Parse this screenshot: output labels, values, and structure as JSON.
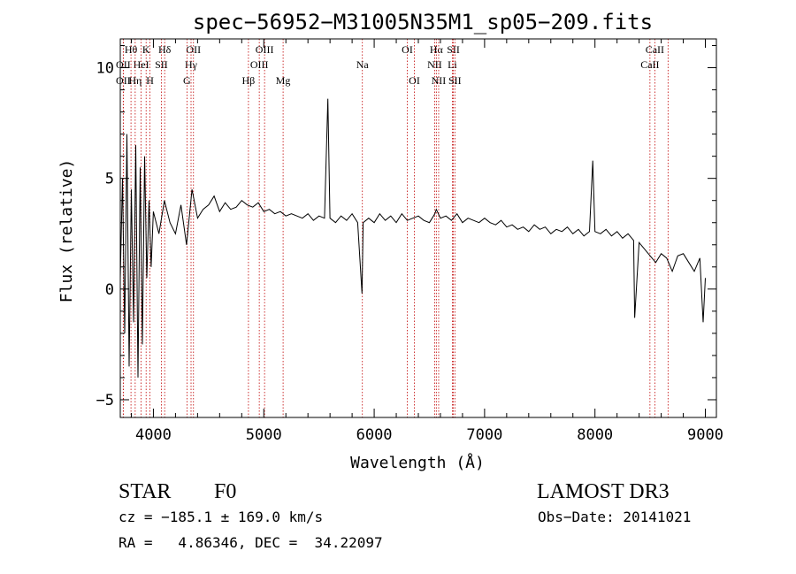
{
  "chart_data": {
    "type": "line",
    "title": "spec−56952−M31005N35M1_sp05−209.fits",
    "xlabel": "Wavelength (Å)",
    "ylabel": "Flux (relative)",
    "xlim": [
      3700,
      9100
    ],
    "ylim": [
      -5.8,
      11.3
    ],
    "xticks": [
      4000,
      5000,
      6000,
      7000,
      8000,
      9000
    ],
    "xtick_labels": [
      "4000",
      "5000",
      "6000",
      "7000",
      "8000",
      "9000"
    ],
    "yticks": [
      -5,
      0,
      5,
      10
    ],
    "ytick_labels": [
      "−5",
      "0",
      "5",
      "10"
    ],
    "grid": false,
    "legend": "none",
    "series": [
      {
        "name": "flux",
        "x": [
          3700,
          3720,
          3740,
          3760,
          3780,
          3800,
          3820,
          3840,
          3860,
          3880,
          3900,
          3920,
          3940,
          3960,
          3980,
          4000,
          4050,
          4100,
          4150,
          4200,
          4250,
          4300,
          4350,
          4400,
          4450,
          4500,
          4550,
          4600,
          4650,
          4700,
          4750,
          4800,
          4850,
          4900,
          4950,
          5000,
          5050,
          5100,
          5150,
          5200,
          5250,
          5300,
          5350,
          5400,
          5450,
          5500,
          5550,
          5580,
          5600,
          5650,
          5700,
          5750,
          5800,
          5850,
          5890,
          5900,
          5950,
          6000,
          6050,
          6100,
          6150,
          6200,
          6250,
          6300,
          6350,
          6400,
          6450,
          6500,
          6550,
          6563,
          6600,
          6650,
          6700,
          6750,
          6800,
          6850,
          6900,
          6950,
          7000,
          7050,
          7100,
          7150,
          7200,
          7250,
          7300,
          7350,
          7400,
          7450,
          7500,
          7550,
          7600,
          7650,
          7700,
          7750,
          7800,
          7850,
          7900,
          7950,
          7980,
          8000,
          8050,
          8100,
          8150,
          8200,
          8250,
          8300,
          8350,
          8360,
          8400,
          8450,
          8500,
          8550,
          8600,
          8650,
          8700,
          8750,
          8800,
          8850,
          8900,
          8950,
          8980,
          9000
        ],
        "y": [
          0.5,
          5.0,
          -2.0,
          7.0,
          -3.5,
          4.5,
          -1.5,
          6.5,
          -4.0,
          5.5,
          -2.5,
          6.0,
          0.5,
          4.0,
          1.0,
          3.5,
          2.5,
          4.0,
          3.0,
          2.5,
          3.8,
          2.0,
          4.5,
          3.2,
          3.6,
          3.8,
          4.2,
          3.5,
          3.9,
          3.6,
          3.7,
          4.0,
          3.8,
          3.7,
          3.9,
          3.5,
          3.6,
          3.4,
          3.5,
          3.3,
          3.4,
          3.3,
          3.2,
          3.4,
          3.1,
          3.3,
          3.2,
          8.6,
          3.2,
          3.0,
          3.3,
          3.1,
          3.4,
          3.0,
          -0.2,
          3.0,
          3.2,
          3.0,
          3.4,
          3.1,
          3.3,
          3.0,
          3.4,
          3.1,
          3.2,
          3.3,
          3.1,
          3.0,
          3.4,
          3.6,
          3.2,
          3.3,
          3.1,
          3.4,
          3.0,
          3.2,
          3.1,
          3.0,
          3.2,
          3.0,
          2.9,
          3.1,
          2.8,
          2.9,
          2.7,
          2.8,
          2.6,
          2.9,
          2.7,
          2.8,
          2.5,
          2.7,
          2.6,
          2.8,
          2.5,
          2.7,
          2.4,
          2.6,
          5.8,
          2.6,
          2.5,
          2.7,
          2.4,
          2.6,
          2.3,
          2.5,
          2.2,
          -1.3,
          2.1,
          1.8,
          1.5,
          1.2,
          1.6,
          1.4,
          0.8,
          1.5,
          1.6,
          1.2,
          0.8,
          1.4,
          -1.5,
          0.5
        ]
      }
    ],
    "lines": [
      {
        "label": "Hθ",
        "x": 3797
      },
      {
        "label": "K",
        "x": 3934
      },
      {
        "label": "Hδ",
        "x": 4102
      },
      {
        "label": "OII",
        "x": 4363
      },
      {
        "label": "OIII",
        "x": 5007
      },
      {
        "label": "OI",
        "x": 6300
      },
      {
        "label": "Hα",
        "x": 6563
      },
      {
        "label": "SII",
        "x": 6717
      },
      {
        "label": "CaII",
        "x": 8542
      },
      {
        "label": "OII",
        "x": 3727
      },
      {
        "label": "HeI",
        "x": 3889
      },
      {
        "label": "SII",
        "x": 4072
      },
      {
        "label": "Hγ",
        "x": 4341
      },
      {
        "label": "OIII",
        "x": 4959
      },
      {
        "label": "Na",
        "x": 5893
      },
      {
        "label": "NII",
        "x": 6548
      },
      {
        "label": "Li",
        "x": 6708
      },
      {
        "label": "CaII",
        "x": 8498
      },
      {
        "label": "OII",
        "x": 3727
      },
      {
        "label": "Hη",
        "x": 3835
      },
      {
        "label": "H",
        "x": 3969
      },
      {
        "label": "G",
        "x": 4304
      },
      {
        "label": "Hβ",
        "x": 4861
      },
      {
        "label": "Mg",
        "x": 5175
      },
      {
        "label": "OI",
        "x": 6364
      },
      {
        "label": "NII",
        "x": 6584
      },
      {
        "label": "SII",
        "x": 6731
      },
      {
        "label": "CaII",
        "x": 8662
      }
    ]
  },
  "info": {
    "object_class": "STAR",
    "subclass": "F0",
    "survey": "LAMOST DR3",
    "cz": "cz = −185.1 ± 169.0 km/s",
    "obs_date": "Obs−Date: 20141021",
    "radec": "RA =   4.86346, DEC =  34.22097"
  }
}
